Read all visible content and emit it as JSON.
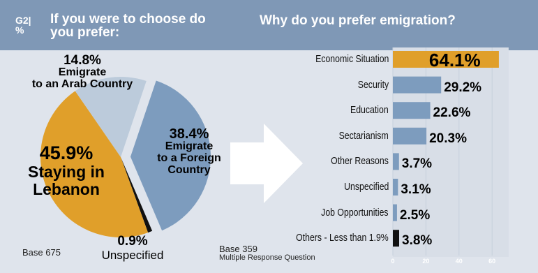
{
  "header": {
    "tag_line1": "G2|",
    "tag_line2": "%",
    "left_title": "If you were to choose do you prefer:",
    "right_title": "Why do you prefer emigration?"
  },
  "colors": {
    "header_bg": "#7f98b6",
    "panel_bg": "#dfe4ec",
    "staying": "#e09f2a",
    "arab": "#bccbdb",
    "foreign": "#7d9cbe",
    "unspecified": "#111111",
    "bar": "#7d9cbe",
    "bar_highlight": "#e09f2a",
    "bar_other": "#111111"
  },
  "pie_labels": {
    "arab_pct": "14.8%",
    "arab_text_1": "Emigrate",
    "arab_text_2": "to an Arab Country",
    "foreign_pct": "38.4%",
    "foreign_text_1": "Emigrate",
    "foreign_text_2": "to a Foreign",
    "foreign_text_3": "Country",
    "stay_pct": "45.9%",
    "stay_text_1": "Staying in",
    "stay_text_2": "Lebanon",
    "unspec_pct": "0.9%",
    "unspec_text": "Unspecified"
  },
  "bar_labels": {
    "v0": "64.1%",
    "v1": "29.2%",
    "v2": "22.6%",
    "v3": "20.3%",
    "v4": "3.7%",
    "v5": "3.1%",
    "v6": "2.5%",
    "v7": "3.8%"
  },
  "footer": {
    "base_left": "Base 675",
    "base_right": "Base 359",
    "note": "Multiple Response Question"
  },
  "chart_data": [
    {
      "type": "pie",
      "categories": [
        "Staying in Lebanon",
        "Emigrate to an Arab Country",
        "Emigrate to a Foreign Country",
        "Unspecified"
      ],
      "values": [
        45.9,
        14.8,
        38.4,
        0.9
      ],
      "title": "If you were to choose do you prefer:"
    },
    {
      "type": "bar",
      "orientation": "horizontal",
      "categories": [
        "Economic Situation",
        "Security",
        "Education",
        "Sectarianism",
        "Other Reasons",
        "Unspecified",
        "Job Opportunities",
        "Others - Less than 1.9%"
      ],
      "values": [
        64.1,
        29.2,
        22.6,
        20.3,
        3.7,
        3.1,
        2.5,
        3.8
      ],
      "title": "Why do you prefer emigration?",
      "xlim": [
        0,
        70
      ],
      "xticks": [
        0,
        20,
        40,
        60
      ],
      "grid": true
    }
  ]
}
